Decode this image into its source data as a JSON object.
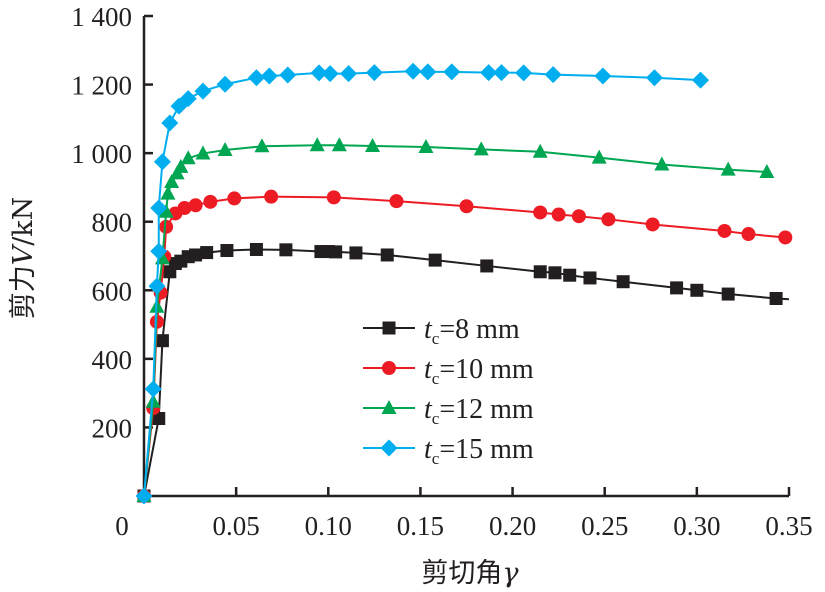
{
  "chart_data": {
    "type": "line",
    "title": "",
    "xlabel": "剪切角",
    "xlabel_symbol": "γ",
    "ylabel": "剪力",
    "ylabel_symbol": "V",
    "ylabel_unit": "/kN",
    "xlim": [
      0,
      0.35
    ],
    "ylim": [
      0,
      1400
    ],
    "x_ticks": [
      0.05,
      0.1,
      0.15,
      0.2,
      0.25,
      0.3,
      0.35
    ],
    "x_tick_labels": [
      "0.05",
      "0.10",
      "0.15",
      "0.20",
      "0.25",
      "0.30",
      "0.35"
    ],
    "x_origin_label": "0",
    "y_ticks": [
      200,
      400,
      600,
      800,
      1000,
      1200,
      1400
    ],
    "y_tick_labels": [
      "200",
      "400",
      "600",
      "800",
      "1 000",
      "1 200",
      "1 400"
    ],
    "grid": false,
    "legend_position": "center",
    "series": [
      {
        "name": "tc=8 mm",
        "label_var": "t",
        "label_sub": "c",
        "label_rest": "=8 mm",
        "color": "#231f20",
        "marker": "square",
        "points": [
          [
            0,
            0
          ],
          [
            0.008,
            226
          ],
          [
            0.01,
            453
          ],
          [
            0.014,
            654
          ],
          [
            0.017,
            678
          ],
          [
            0.02,
            685
          ],
          [
            0.024,
            698
          ],
          [
            0.028,
            703
          ],
          [
            0.034,
            710
          ],
          [
            0.045,
            716
          ],
          [
            0.061,
            719
          ],
          [
            0.077,
            718
          ],
          [
            0.096,
            713
          ],
          [
            0.1,
            713
          ],
          [
            0.104,
            712
          ],
          [
            0.115,
            709
          ],
          [
            0.132,
            703
          ],
          [
            0.158,
            688
          ],
          [
            0.186,
            671
          ],
          [
            0.215,
            654
          ],
          [
            0.223,
            651
          ],
          [
            0.231,
            644
          ],
          [
            0.242,
            636
          ],
          [
            0.26,
            625
          ],
          [
            0.289,
            607
          ],
          [
            0.3,
            600
          ],
          [
            0.317,
            589
          ],
          [
            0.343,
            576
          ]
        ],
        "line_end": [
          0.35,
          574
        ]
      },
      {
        "name": "tc=10 mm",
        "label_var": "t",
        "label_sub": "c",
        "label_rest": "=10 mm",
        "color": "#ed1c24",
        "marker": "circle",
        "points": [
          [
            0,
            0
          ],
          [
            0.005,
            256
          ],
          [
            0.007,
            508
          ],
          [
            0.009,
            593
          ],
          [
            0.011,
            698
          ],
          [
            0.012,
            785
          ],
          [
            0.017,
            824
          ],
          [
            0.022,
            840
          ],
          [
            0.028,
            848
          ],
          [
            0.036,
            858
          ],
          [
            0.049,
            868
          ],
          [
            0.069,
            873
          ],
          [
            0.103,
            871
          ],
          [
            0.137,
            860
          ],
          [
            0.175,
            845
          ],
          [
            0.215,
            827
          ],
          [
            0.225,
            821
          ],
          [
            0.236,
            816
          ],
          [
            0.252,
            807
          ],
          [
            0.276,
            792
          ],
          [
            0.315,
            773
          ],
          [
            0.328,
            764
          ],
          [
            0.348,
            754
          ]
        ]
      },
      {
        "name": "tc=12 mm",
        "label_var": "t",
        "label_sub": "c",
        "label_rest": "=12 mm",
        "color": "#00a651",
        "marker": "triangle",
        "points": [
          [
            0,
            0
          ],
          [
            0.005,
            275
          ],
          [
            0.007,
            552
          ],
          [
            0.01,
            693
          ],
          [
            0.012,
            829
          ],
          [
            0.013,
            882
          ],
          [
            0.015,
            916
          ],
          [
            0.018,
            941
          ],
          [
            0.02,
            960
          ],
          [
            0.024,
            985
          ],
          [
            0.032,
            999
          ],
          [
            0.044,
            1009
          ],
          [
            0.064,
            1020
          ],
          [
            0.094,
            1023
          ],
          [
            0.106,
            1023
          ],
          [
            0.124,
            1021
          ],
          [
            0.153,
            1018
          ],
          [
            0.183,
            1011
          ],
          [
            0.215,
            1004
          ],
          [
            0.247,
            987
          ],
          [
            0.281,
            967
          ],
          [
            0.317,
            952
          ],
          [
            0.338,
            945
          ]
        ]
      },
      {
        "name": "tc=15 mm",
        "label_var": "t",
        "label_sub": "c",
        "label_rest": "=15 mm",
        "color": "#00aeef",
        "marker": "diamond",
        "points": [
          [
            0,
            0
          ],
          [
            0.005,
            312
          ],
          [
            0.007,
            612
          ],
          [
            0.008,
            714
          ],
          [
            0.008,
            840
          ],
          [
            0.01,
            975
          ],
          [
            0.014,
            1088
          ],
          [
            0.019,
            1137
          ],
          [
            0.024,
            1159
          ],
          [
            0.032,
            1181
          ],
          [
            0.044,
            1201
          ],
          [
            0.061,
            1220
          ],
          [
            0.068,
            1225
          ],
          [
            0.078,
            1228
          ],
          [
            0.095,
            1234
          ],
          [
            0.101,
            1232
          ],
          [
            0.111,
            1232
          ],
          [
            0.125,
            1235
          ],
          [
            0.146,
            1239
          ],
          [
            0.154,
            1237
          ],
          [
            0.167,
            1237
          ],
          [
            0.187,
            1235
          ],
          [
            0.194,
            1235
          ],
          [
            0.206,
            1234
          ],
          [
            0.222,
            1229
          ],
          [
            0.249,
            1225
          ],
          [
            0.277,
            1220
          ],
          [
            0.302,
            1213
          ]
        ]
      }
    ]
  }
}
